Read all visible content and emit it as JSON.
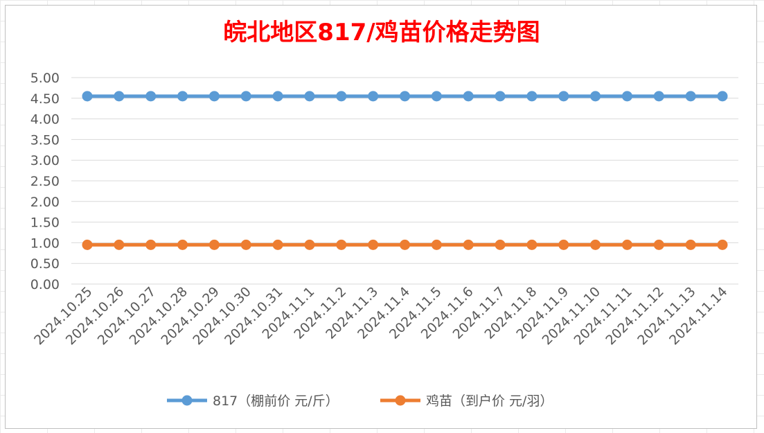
{
  "chart_data": {
    "type": "line",
    "title": "皖北地区817/鸡苗价格走势图",
    "title_color": "#ff0000",
    "categories": [
      "2024.10.25",
      "2024.10.26",
      "2024.10.27",
      "2024.10.28",
      "2024.10.29",
      "2024.10.30",
      "2024.10.31",
      "2024.11.1",
      "2024.11.2",
      "2024.11.3",
      "2024.11.4",
      "2024.11.5",
      "2024.11.6",
      "2024.11.7",
      "2024.11.8",
      "2024.11.9",
      "2024.11.10",
      "2024.11.11",
      "2024.11.12",
      "2024.11.13",
      "2024.11.14"
    ],
    "series": [
      {
        "name": "817（棚前价 元/斤）",
        "color": "#5b9bd5",
        "values": [
          4.55,
          4.55,
          4.55,
          4.55,
          4.55,
          4.55,
          4.55,
          4.55,
          4.55,
          4.55,
          4.55,
          4.55,
          4.55,
          4.55,
          4.55,
          4.55,
          4.55,
          4.55,
          4.55,
          4.55,
          4.55
        ]
      },
      {
        "name": "鸡苗（到户价 元/羽）",
        "color": "#ed7d31",
        "values": [
          0.95,
          0.95,
          0.95,
          0.95,
          0.95,
          0.95,
          0.95,
          0.95,
          0.95,
          0.95,
          0.95,
          0.95,
          0.95,
          0.95,
          0.95,
          0.95,
          0.95,
          0.95,
          0.95,
          0.95,
          0.95
        ]
      }
    ],
    "y_ticks": [
      "0.00",
      "0.50",
      "1.00",
      "1.50",
      "2.00",
      "2.50",
      "3.00",
      "3.50",
      "4.00",
      "4.50",
      "5.00"
    ],
    "ylim": [
      0,
      5
    ],
    "grid": true,
    "legend_position": "bottom"
  }
}
